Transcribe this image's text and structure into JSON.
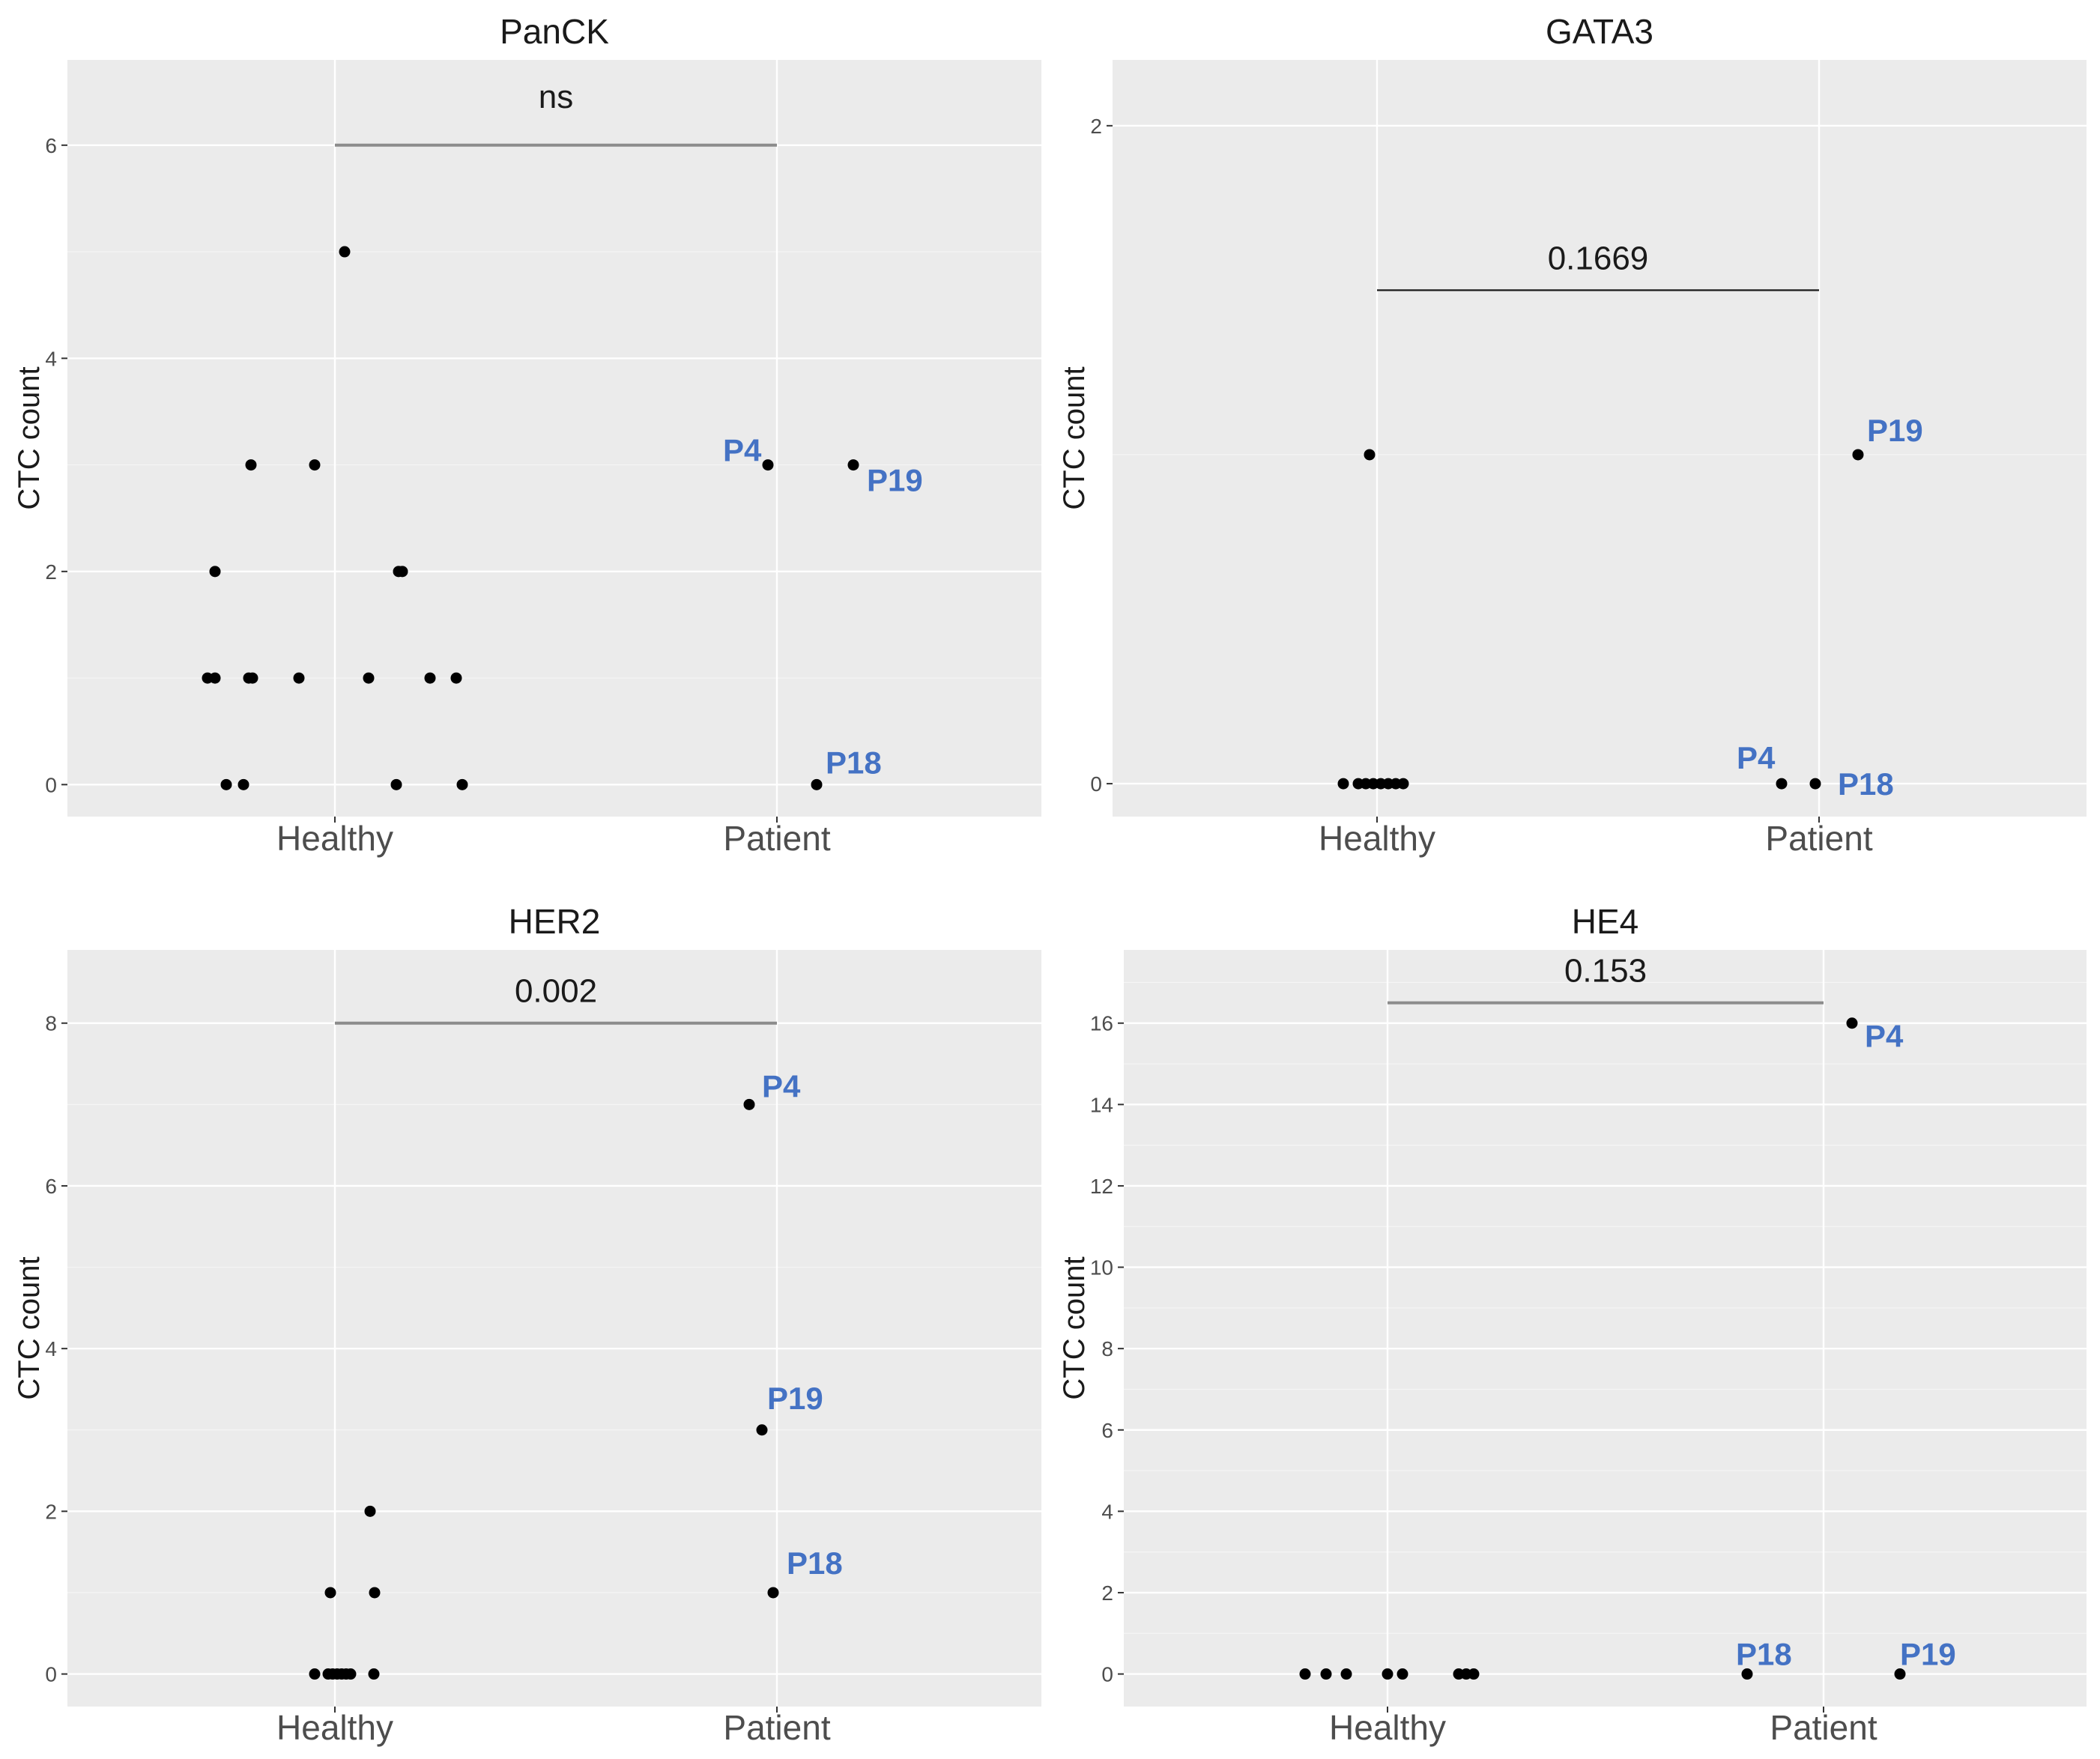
{
  "chart_data": [
    {
      "type": "scatter",
      "title": "PanCK",
      "ylabel": "CTC count",
      "categories": [
        "Healthy",
        "Patient"
      ],
      "ylim": [
        -0.3,
        6.8
      ],
      "yticks": [
        0,
        2,
        4,
        6
      ],
      "minor_yticks": [
        1,
        3,
        5
      ],
      "significance": "ns",
      "bracket_y": 6,
      "points": {
        "Healthy": [
          5,
          3,
          3,
          2,
          2,
          2,
          1,
          1,
          1,
          1,
          1,
          1,
          1,
          1,
          0,
          0,
          0,
          0
        ],
        "Patient": [
          3,
          3,
          0
        ]
      },
      "labeled_points": [
        {
          "label": "P4",
          "value": 3
        },
        {
          "label": "P19",
          "value": 3
        },
        {
          "label": "P18",
          "value": 0
        }
      ]
    },
    {
      "type": "scatter",
      "title": "GATA3",
      "ylabel": "CTC count",
      "categories": [
        "Healthy",
        "Patient"
      ],
      "ylim": [
        -0.1,
        2.2
      ],
      "yticks": [
        0,
        2
      ],
      "minor_yticks": [
        1
      ],
      "significance": "0.1669",
      "bracket_y": 1.5,
      "points": {
        "Healthy": [
          1,
          0,
          0,
          0,
          0,
          0,
          0,
          0,
          0
        ],
        "Patient": [
          1,
          0,
          0
        ]
      },
      "labeled_points": [
        {
          "label": "P19",
          "value": 1
        },
        {
          "label": "P4",
          "value": 0
        },
        {
          "label": "P18",
          "value": 0
        }
      ]
    },
    {
      "type": "scatter",
      "title": "HER2",
      "ylabel": "CTC count",
      "categories": [
        "Healthy",
        "Patient"
      ],
      "ylim": [
        -0.4,
        8.9
      ],
      "yticks": [
        0,
        2,
        4,
        6,
        8
      ],
      "minor_yticks": [
        1,
        3,
        5,
        7
      ],
      "significance": "0.002",
      "bracket_y": 8,
      "points": {
        "Healthy": [
          2,
          1,
          1,
          0,
          0,
          0,
          0,
          0,
          0,
          0,
          0
        ],
        "Patient": [
          7,
          3,
          1
        ]
      },
      "labeled_points": [
        {
          "label": "P4",
          "value": 7
        },
        {
          "label": "P19",
          "value": 3
        },
        {
          "label": "P18",
          "value": 1
        }
      ]
    },
    {
      "type": "scatter",
      "title": "HE4",
      "ylabel": "CTC count",
      "categories": [
        "Healthy",
        "Patient"
      ],
      "ylim": [
        -0.8,
        17.8
      ],
      "yticks": [
        0,
        2,
        4,
        6,
        8,
        10,
        12,
        14,
        16
      ],
      "minor_yticks": [
        1,
        3,
        5,
        7,
        9,
        11,
        13,
        15,
        17
      ],
      "significance": "0.153",
      "bracket_y": 16.5,
      "points": {
        "Healthy": [
          0,
          0,
          0,
          0,
          0,
          0,
          0,
          0
        ],
        "Patient": [
          16,
          0,
          0
        ]
      },
      "labeled_points": [
        {
          "label": "P4",
          "value": 16
        },
        {
          "label": "P18",
          "value": 0
        },
        {
          "label": "P19",
          "value": 0
        }
      ]
    }
  ]
}
